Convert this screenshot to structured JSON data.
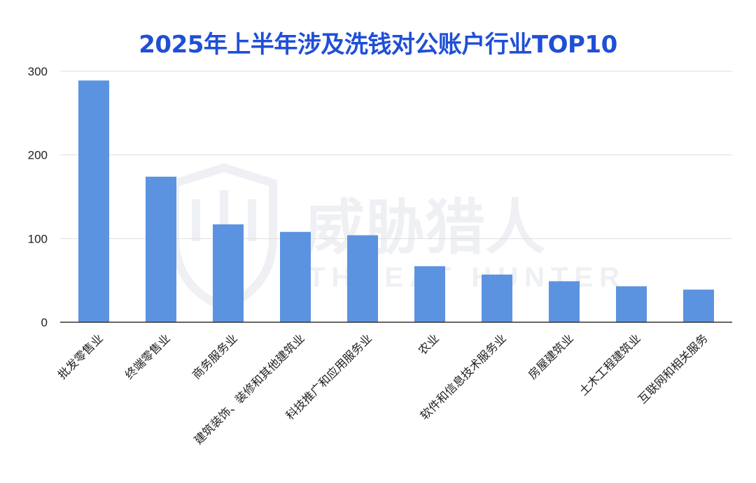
{
  "chart_data": {
    "type": "bar",
    "title": "2025年上半年涉及洗钱对公账户行业TOP10",
    "categories": [
      "批发零售业",
      "终端零售业",
      "商务服务业",
      "建筑装饰、装修和其他建筑业",
      "科技推广和应用服务业",
      "农业",
      "软件和信息技术服务业",
      "房屋建筑业",
      "土木工程建筑业",
      "互联网和相关服务"
    ],
    "values": [
      289,
      174,
      117,
      108,
      104,
      67,
      57,
      49,
      43,
      39
    ],
    "yticks": [
      0,
      100,
      200,
      300
    ],
    "ylim": [
      0,
      300
    ],
    "grid": true,
    "bar_color": "#5b93e0",
    "xlabel": "",
    "ylabel": ""
  },
  "watermark": {
    "cn": "威胁猎人",
    "en": "THREAT HUNTER",
    "icon": "shield-logo-icon",
    "color": "#eef0f4"
  },
  "colors": {
    "title": "#1f4fd6",
    "grid": "#dedede",
    "axis": "#333333",
    "text": "#222222"
  }
}
